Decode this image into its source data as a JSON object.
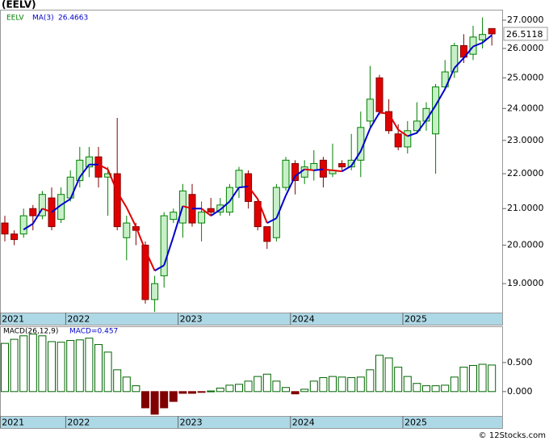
{
  "title": "(EELV)",
  "footer": "© 12Stocks.com",
  "chart_data": [
    {
      "type": "candlestick",
      "name": "EELV",
      "log_scale": true,
      "grid": false,
      "up_color": "#008000",
      "up_fill": "#c8f0c8",
      "down_color": "#800000",
      "down_fill": "#e00000",
      "categories": [
        "2021",
        null,
        null,
        null,
        null,
        null,
        null,
        "2022",
        null,
        null,
        null,
        null,
        null,
        null,
        null,
        null,
        null,
        null,
        null,
        "2023",
        null,
        null,
        null,
        null,
        null,
        null,
        null,
        null,
        null,
        null,
        null,
        "2024",
        null,
        null,
        null,
        null,
        null,
        null,
        null,
        null,
        null,
        null,
        null,
        "2025",
        null,
        null,
        null,
        null,
        null,
        null,
        null,
        null,
        null
      ],
      "open": [
        20.6,
        20.3,
        20.3,
        21.0,
        20.8,
        21.3,
        20.7,
        21.3,
        21.8,
        22.2,
        22.5,
        21.9,
        22.0,
        20.2,
        20.5,
        20.0,
        18.6,
        19.2,
        20.7,
        20.6,
        21.4,
        20.6,
        21.0,
        20.9,
        20.9,
        21.6,
        22.0,
        21.2,
        20.5,
        20.2,
        21.6,
        22.3,
        21.9,
        22.1,
        22.4,
        22.0,
        22.3,
        22.2,
        22.4,
        23.6,
        25.0,
        23.9,
        23.2,
        22.8,
        23.3,
        23.6,
        23.2,
        24.7,
        25.2,
        26.1,
        25.8,
        26.3,
        26.7
      ],
      "high": [
        20.8,
        20.4,
        21.0,
        21.1,
        21.5,
        21.6,
        21.6,
        22.1,
        22.8,
        22.8,
        22.8,
        22.2,
        23.7,
        20.8,
        20.6,
        20.1,
        19.2,
        20.9,
        21.0,
        21.7,
        21.7,
        21.2,
        21.3,
        21.3,
        21.7,
        22.2,
        22.1,
        21.3,
        20.5,
        21.7,
        22.5,
        22.4,
        22.4,
        22.7,
        22.5,
        22.9,
        22.4,
        23.2,
        23.9,
        25.4,
        25.1,
        24.3,
        23.5,
        23.6,
        24.2,
        24.2,
        24.8,
        25.6,
        26.2,
        26.5,
        26.8,
        27.1,
        26.7
      ],
      "low": [
        20.1,
        20.0,
        20.2,
        20.4,
        20.7,
        20.4,
        20.6,
        21.2,
        21.6,
        21.9,
        21.6,
        20.8,
        20.4,
        19.6,
        20.0,
        18.5,
        18.3,
        18.9,
        20.6,
        20.2,
        20.5,
        20.1,
        20.8,
        20.8,
        20.8,
        21.3,
        21.0,
        20.4,
        19.9,
        20.1,
        21.5,
        21.4,
        21.7,
        21.8,
        21.6,
        21.9,
        22.1,
        22.1,
        21.9,
        23.4,
        23.8,
        23.2,
        22.7,
        22.6,
        23.2,
        23.3,
        22.0,
        24.6,
        25.0,
        25.5,
        25.6,
        26.0,
        26.1
      ],
      "close": [
        20.3,
        20.15,
        20.8,
        20.8,
        21.4,
        20.5,
        21.4,
        21.9,
        22.4,
        22.5,
        21.9,
        22.0,
        20.5,
        20.6,
        20.4,
        18.6,
        19.0,
        20.8,
        20.9,
        21.5,
        20.6,
        20.9,
        20.9,
        21.1,
        21.6,
        22.1,
        21.2,
        20.5,
        20.1,
        21.6,
        22.4,
        21.8,
        22.2,
        22.3,
        21.9,
        22.1,
        22.2,
        22.4,
        23.4,
        24.3,
        23.9,
        23.3,
        22.8,
        23.3,
        23.6,
        24.0,
        24.7,
        25.2,
        26.1,
        25.7,
        26.4,
        26.49,
        26.5118
      ],
      "last_close_label": "26.5118",
      "ma": {
        "name": "MA(3)",
        "color": "#0000cc",
        "down_color": "#e00000",
        "last_label": "26.4663",
        "values": [
          null,
          null,
          20.42,
          20.58,
          21.0,
          20.9,
          21.1,
          21.27,
          21.9,
          22.27,
          22.27,
          22.13,
          21.47,
          21.03,
          20.5,
          19.87,
          19.33,
          19.47,
          20.23,
          21.07,
          21.0,
          21.0,
          20.8,
          20.97,
          21.2,
          21.6,
          21.63,
          21.27,
          20.6,
          20.73,
          21.37,
          21.93,
          22.13,
          22.1,
          22.13,
          22.1,
          22.07,
          22.23,
          22.67,
          23.37,
          23.87,
          23.83,
          23.33,
          23.13,
          23.23,
          23.63,
          24.1,
          24.63,
          25.33,
          25.67,
          26.07,
          26.2,
          26.4663
        ]
      },
      "ylim": [
        18.28,
        27.38
      ],
      "yticks": [
        {
          "value": 19,
          "label": "19.0000"
        },
        {
          "value": 20,
          "label": "20.0000"
        },
        {
          "value": 21,
          "label": "21.0000"
        },
        {
          "value": 22,
          "label": "22.0000"
        },
        {
          "value": 23,
          "label": "23.0000"
        },
        {
          "value": 24,
          "label": "24.0000"
        },
        {
          "value": 25,
          "label": "25.0000"
        },
        {
          "value": 26,
          "label": "26.0000"
        },
        {
          "value": 27,
          "label": "27.0000"
        }
      ]
    },
    {
      "type": "bar",
      "name": "MACD(26,12,9)",
      "current_label": "MACD=0.457",
      "color": "#006400",
      "negative_color": "#800000",
      "values": [
        0.83,
        0.9,
        0.96,
        0.99,
        0.96,
        0.86,
        0.85,
        0.88,
        0.89,
        0.92,
        0.81,
        0.68,
        0.375,
        0.25,
        0.1,
        -0.28,
        -0.39,
        -0.28,
        -0.17,
        -0.03,
        -0.03,
        -0.01,
        0.01,
        0.06,
        0.11,
        0.125,
        0.18,
        0.26,
        0.3,
        0.18,
        0.07,
        -0.04,
        0.04,
        0.18,
        0.24,
        0.26,
        0.25,
        0.24,
        0.25,
        0.375,
        0.625,
        0.58,
        0.42,
        0.26,
        0.14,
        0.1,
        0.1,
        0.11,
        0.25,
        0.42,
        0.45,
        0.47,
        0.457
      ],
      "ylim": [
        -0.42,
        1.11
      ],
      "yticks": [
        {
          "value": 0,
          "label": "0.000"
        },
        {
          "value": 0.5,
          "label": "0.500"
        }
      ]
    }
  ]
}
